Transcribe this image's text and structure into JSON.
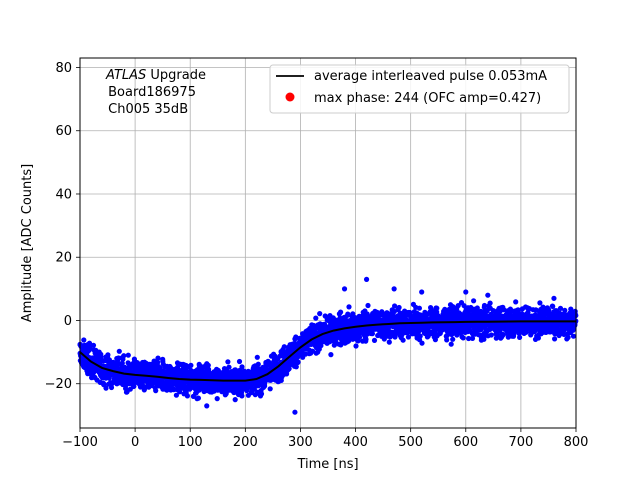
{
  "chart_data": {
    "type": "scatter",
    "title": "",
    "xlabel": "Time [ns]",
    "ylabel": "Amplitude [ADC Counts]",
    "xlim": [
      -100,
      800
    ],
    "ylim": [
      -34,
      83
    ],
    "xticks": [
      "−100",
      "0",
      "100",
      "200",
      "300",
      "400",
      "500",
      "600",
      "700",
      "800"
    ],
    "xtick_values": [
      -100,
      0,
      100,
      200,
      300,
      400,
      500,
      600,
      700,
      800
    ],
    "yticks": [
      "−20",
      "0",
      "20",
      "40",
      "60",
      "80"
    ],
    "ytick_values": [
      -20,
      0,
      20,
      40,
      60,
      80
    ],
    "grid": true,
    "legend_position": "top-right",
    "annotation": {
      "italic": "ATLAS",
      "line1_rest": " Upgrade",
      "line2": " Board186975",
      "line3": " Ch005 35dB"
    },
    "series": [
      {
        "name": "average interleaved pulse 0.053mA",
        "kind": "line",
        "color": "#000000",
        "x": [
          -100,
          -80,
          -60,
          -40,
          -20,
          0,
          20,
          40,
          60,
          80,
          100,
          120,
          140,
          160,
          180,
          200,
          220,
          240,
          260,
          280,
          300,
          320,
          340,
          360,
          380,
          400,
          420,
          440,
          460,
          480,
          500,
          520,
          540,
          560,
          580,
          600,
          620,
          640,
          660,
          680,
          700,
          720,
          740,
          760,
          780,
          800
        ],
        "y": [
          -10,
          -13,
          -15,
          -16,
          -16.8,
          -17.2,
          -17.5,
          -17.8,
          -18.2,
          -18.5,
          -18.7,
          -18.8,
          -18.9,
          -19,
          -19,
          -19,
          -18.5,
          -17,
          -14.5,
          -11.5,
          -8.5,
          -6,
          -4.3,
          -3.2,
          -2.5,
          -2,
          -1.6,
          -1.3,
          -1.1,
          -0.9,
          -0.8,
          -0.7,
          -0.6,
          -0.55,
          -0.5,
          -0.45,
          -0.4,
          -0.38,
          -0.35,
          -0.33,
          -0.3,
          -0.3,
          -0.3,
          -0.3,
          -0.3,
          -0.3
        ]
      },
      {
        "name": "max phase: 244 (OFC amp=0.427)",
        "kind": "marker",
        "color": "#ff0000",
        "x": [],
        "y": []
      }
    ],
    "scatter_band": {
      "color": "#0000ff",
      "spread_center": 4,
      "spread_max": 8,
      "outliers": [
        [
          420,
          13
        ],
        [
          470,
          10
        ],
        [
          520,
          9
        ],
        [
          600,
          9
        ],
        [
          640,
          8
        ],
        [
          380,
          10
        ],
        [
          290,
          -29
        ],
        [
          130,
          -27
        ],
        [
          760,
          7
        ]
      ]
    }
  }
}
